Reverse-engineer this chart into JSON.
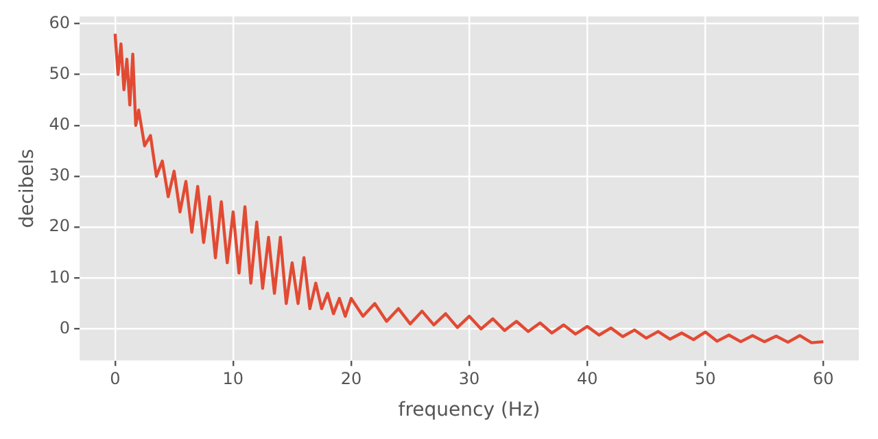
{
  "chart_data": {
    "type": "line",
    "xlabel": "frequency (Hz)",
    "ylabel": "decibels",
    "x": [
      0,
      0.25,
      0.5,
      0.75,
      1,
      1.25,
      1.5,
      1.75,
      2,
      2.5,
      3,
      3.5,
      4,
      4.5,
      5,
      5.5,
      6,
      6.5,
      7,
      7.5,
      8,
      8.5,
      9,
      9.5,
      10,
      10.5,
      11,
      11.5,
      12,
      12.5,
      13,
      13.5,
      14,
      14.5,
      15,
      15.5,
      16,
      16.5,
      17,
      17.5,
      18,
      18.5,
      19,
      19.5,
      20,
      21,
      22,
      23,
      24,
      25,
      26,
      27,
      28,
      29,
      30,
      31,
      32,
      33,
      34,
      35,
      36,
      37,
      38,
      39,
      40,
      41,
      42,
      43,
      44,
      45,
      46,
      47,
      48,
      49,
      50,
      51,
      52,
      53,
      54,
      55,
      56,
      57,
      58,
      59,
      60
    ],
    "series": [
      {
        "color": "#e24a33",
        "values": [
          58,
          50,
          56,
          47,
          53,
          44,
          54,
          40,
          43,
          36,
          38,
          30,
          33,
          26,
          31,
          23,
          29,
          19,
          28,
          17,
          26,
          14,
          25,
          13,
          23,
          11,
          24,
          9,
          21,
          8,
          18,
          7,
          18,
          5,
          13,
          5,
          14,
          4,
          9,
          4,
          7,
          3,
          6,
          2.5,
          6,
          2.5,
          5,
          1.5,
          4,
          1,
          3.5,
          0.8,
          3,
          0.3,
          2.5,
          0,
          2,
          -0.3,
          1.5,
          -0.5,
          1.2,
          -0.8,
          0.8,
          -1,
          0.5,
          -1.2,
          0.2,
          -1.5,
          -0.2,
          -1.8,
          -0.5,
          -2,
          -0.8,
          -2.1,
          -0.6,
          -2.4,
          -1.2,
          -2.5,
          -1.3,
          -2.5,
          -1.4,
          -2.6,
          -1.3,
          -2.7,
          -2.5
        ]
      }
    ],
    "xlim": [
      -3,
      63
    ],
    "xticks": [
      0,
      10,
      20,
      30,
      40,
      50,
      60
    ],
    "ylim": [
      -6.2,
      61.4
    ],
    "yticks": [
      0,
      10,
      20,
      30,
      40,
      50,
      60
    ],
    "grid": true,
    "legend": false,
    "marker": "none",
    "line_style": "solid"
  }
}
